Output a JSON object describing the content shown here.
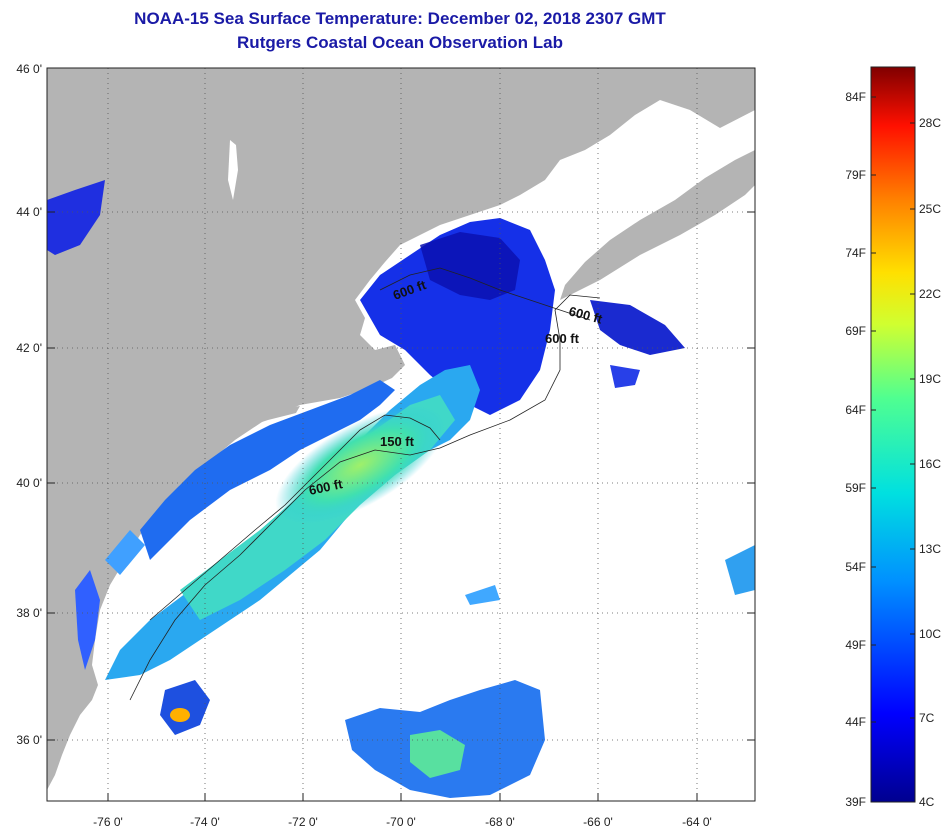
{
  "title_line1": "NOAA-15 Sea Surface Temperature:  December 02, 2018 2307 GMT",
  "title_line2": "Rutgers Coastal Ocean Observation Lab",
  "lat_labels": [
    "46 0'",
    "44 0'",
    "42 0'",
    "40 0'",
    "38 0'",
    "36 0'"
  ],
  "lon_labels": [
    "-76 0'",
    "-74 0'",
    "-72 0'",
    "-70 0'",
    "-68 0'",
    "-66 0'",
    "-64 0'"
  ],
  "contours": [
    "600 ft",
    "600 ft",
    "600 ft",
    "150 ft",
    "600 ft"
  ],
  "colorbar": {
    "fahrenheit": [
      "84F",
      "79F",
      "74F",
      "69F",
      "64F",
      "59F",
      "54F",
      "49F",
      "44F",
      "39F"
    ],
    "celsius": [
      "28C",
      "25C",
      "22C",
      "19C",
      "16C",
      "13C",
      "10C",
      "7C",
      "4C"
    ]
  },
  "colors": {
    "land": "#b4b4b4",
    "title": "#1a1aa6",
    "no_data": "#ffffff"
  }
}
